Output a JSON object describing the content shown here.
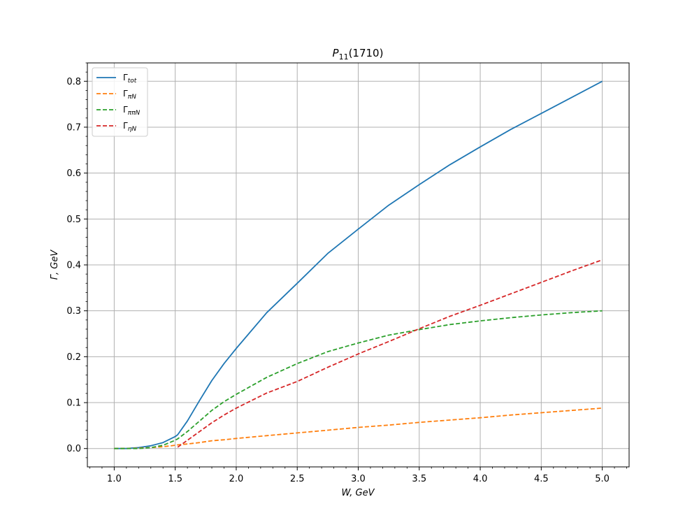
{
  "chart_data": {
    "type": "line",
    "title": {
      "main": "P",
      "sub": "11",
      "rest": "(1710)"
    },
    "xlabel": "W, GeV",
    "ylabel": "Γ,  GeV",
    "xlim": [
      0.78,
      5.22
    ],
    "ylim": [
      -0.04,
      0.84
    ],
    "xticks": [
      1.0,
      1.5,
      2.0,
      2.5,
      3.0,
      3.5,
      4.0,
      4.5,
      5.0
    ],
    "xtick_labels": [
      "1.0",
      "1.5",
      "2.0",
      "2.5",
      "3.0",
      "3.5",
      "4.0",
      "4.5",
      "5.0"
    ],
    "yticks": [
      0.0,
      0.1,
      0.2,
      0.3,
      0.4,
      0.5,
      0.6,
      0.7,
      0.8
    ],
    "ytick_labels": [
      "0.0",
      "0.1",
      "0.2",
      "0.3",
      "0.4",
      "0.5",
      "0.6",
      "0.7",
      "0.8"
    ],
    "grid": true,
    "legend_position": "top-left",
    "x": [
      1.0,
      1.1,
      1.2,
      1.3,
      1.4,
      1.5,
      1.52,
      1.6,
      1.7,
      1.8,
      1.9,
      2.0,
      2.25,
      2.5,
      2.75,
      3.0,
      3.25,
      3.5,
      3.75,
      4.0,
      4.25,
      4.5,
      4.75,
      5.0
    ],
    "series": [
      {
        "name": "Γ",
        "sub": "tot",
        "color": "#1f77b4",
        "dash": "solid",
        "values": [
          0.0,
          0.0,
          0.002,
          0.006,
          0.013,
          0.026,
          0.03,
          0.06,
          0.105,
          0.148,
          0.185,
          0.218,
          0.296,
          0.36,
          0.425,
          0.478,
          0.53,
          0.575,
          0.618,
          0.657,
          0.695,
          0.73,
          0.765,
          0.8
        ]
      },
      {
        "name": "Γ",
        "sub": "πN",
        "color": "#ff7f0e",
        "dash": "dashed",
        "values": [
          0.0,
          0.0,
          0.001,
          0.002,
          0.004,
          0.007,
          0.008,
          0.01,
          0.013,
          0.017,
          0.019,
          0.022,
          0.028,
          0.034,
          0.04,
          0.046,
          0.051,
          0.057,
          0.062,
          0.067,
          0.073,
          0.078,
          0.083,
          0.088
        ]
      },
      {
        "name": "Γ",
        "sub": "ππN",
        "color": "#2ca02c",
        "dash": "dashed",
        "values": [
          0.0,
          0.0,
          0.0,
          0.002,
          0.007,
          0.018,
          0.021,
          0.037,
          0.06,
          0.083,
          0.102,
          0.118,
          0.155,
          0.185,
          0.211,
          0.23,
          0.247,
          0.259,
          0.27,
          0.278,
          0.285,
          0.291,
          0.296,
          0.3
        ]
      },
      {
        "name": "Γ",
        "sub": "ηN",
        "color": "#d62728",
        "dash": "dashed",
        "values": [
          null,
          null,
          null,
          null,
          null,
          null,
          0.003,
          0.018,
          0.037,
          0.056,
          0.073,
          0.088,
          0.121,
          0.146,
          0.177,
          0.206,
          0.233,
          0.261,
          0.288,
          0.312,
          0.337,
          0.362,
          0.387,
          0.411
        ]
      }
    ]
  }
}
